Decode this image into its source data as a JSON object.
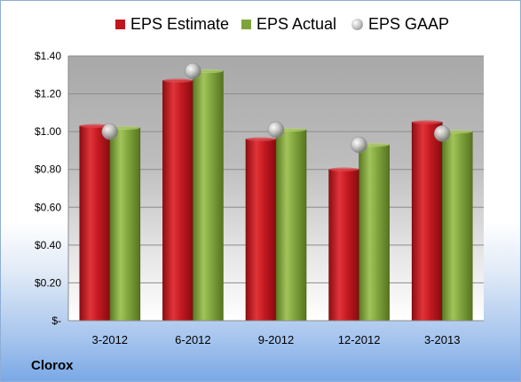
{
  "company": "Clorox",
  "chart_data": {
    "type": "bar",
    "categories": [
      "3-2012",
      "6-2012",
      "9-2012",
      "12-2012",
      "3-2013"
    ],
    "series": [
      {
        "name": "EPS Estimate",
        "type": "bar",
        "color": "#c0161e",
        "values": [
          1.03,
          1.27,
          0.96,
          0.8,
          1.05
        ]
      },
      {
        "name": "EPS Actual",
        "type": "bar",
        "color": "#7ea33a",
        "values": [
          1.02,
          1.32,
          1.01,
          0.93,
          1.0
        ]
      },
      {
        "name": "EPS GAAP",
        "type": "marker",
        "color": "#b8b8b8",
        "values": [
          1.0,
          1.32,
          1.01,
          0.93,
          0.99
        ]
      }
    ],
    "ylim": [
      0,
      1.4
    ],
    "yticks": [
      0,
      0.2,
      0.4,
      0.6,
      0.8,
      1.0,
      1.2,
      1.4
    ],
    "ytick_labels": [
      "$-",
      "$0.20",
      "$0.40",
      "$0.60",
      "$0.80",
      "$1.00",
      "$1.20",
      "$1.40"
    ],
    "grid": true,
    "legend_position": "top"
  }
}
